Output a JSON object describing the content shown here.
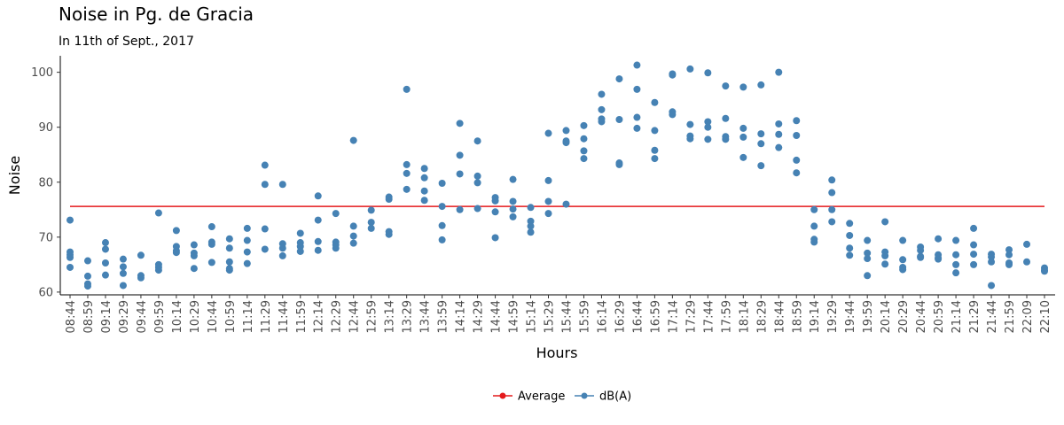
{
  "chart_data": {
    "type": "scatter",
    "title": "Noise in Pg. de Gracia",
    "subtitle": "In 11th of Sept., 2017",
    "xlabel": "Hours",
    "ylabel": "Noise",
    "ylim": [
      59.5,
      103
    ],
    "y_ticks": [
      60,
      70,
      80,
      90,
      100
    ],
    "grid": false,
    "legend_position": "bottom",
    "categories": [
      "08:44",
      "08:59",
      "09:14",
      "09:29",
      "09:44",
      "09:59",
      "10:14",
      "10:29",
      "10:44",
      "10:59",
      "11:14",
      "11:29",
      "11:44",
      "11:59",
      "12:14",
      "12:29",
      "12:44",
      "12:59",
      "13:14",
      "13:29",
      "13:44",
      "13:59",
      "14:14",
      "14:29",
      "14:44",
      "14:59",
      "15:14",
      "15:29",
      "15:44",
      "15:59",
      "16:14",
      "16:29",
      "16:44",
      "16:59",
      "17:14",
      "17:29",
      "17:44",
      "17:59",
      "18:14",
      "18:29",
      "18:44",
      "18:59",
      "19:14",
      "19:29",
      "19:44",
      "19:59",
      "20:14",
      "20:29",
      "20:44",
      "20:59",
      "21:14",
      "21:29",
      "21:44",
      "21:59",
      "22:09",
      "22:10"
    ],
    "series": [
      {
        "name": "Average",
        "type": "line",
        "color": "#e41a1c",
        "value": 75.6
      },
      {
        "name": "dB(A)",
        "type": "scatter",
        "color": "#4682b4",
        "points": [
          {
            "x": "08:44",
            "ys": [
              73.1,
              67.3,
              66.8,
              66.3,
              64.5
            ]
          },
          {
            "x": "08:59",
            "ys": [
              65.7,
              62.9,
              61.5,
              61.1
            ]
          },
          {
            "x": "09:14",
            "ys": [
              69.0,
              67.8,
              65.3,
              63.1
            ]
          },
          {
            "x": "09:29",
            "ys": [
              66.0,
              64.6,
              63.4,
              61.2
            ]
          },
          {
            "x": "09:44",
            "ys": [
              66.7,
              63.0,
              62.6
            ]
          },
          {
            "x": "09:59",
            "ys": [
              74.4,
              65.0,
              64.5,
              64.0
            ]
          },
          {
            "x": "10:14",
            "ys": [
              71.2,
              68.3,
              67.5,
              67.2
            ]
          },
          {
            "x": "10:29",
            "ys": [
              68.6,
              67.1,
              66.6,
              64.3
            ]
          },
          {
            "x": "10:44",
            "ys": [
              71.9,
              69.1,
              68.7,
              65.4
            ]
          },
          {
            "x": "10:59",
            "ys": [
              69.7,
              68.0,
              65.5,
              64.3,
              64.0
            ]
          },
          {
            "x": "11:14",
            "ys": [
              71.6,
              69.4,
              67.3,
              65.2
            ]
          },
          {
            "x": "11:29",
            "ys": [
              83.1,
              79.6,
              71.5,
              67.8
            ]
          },
          {
            "x": "11:44",
            "ys": [
              79.6,
              68.8,
              68.0,
              66.6
            ]
          },
          {
            "x": "11:59",
            "ys": [
              70.7,
              69.0,
              68.3,
              67.4
            ]
          },
          {
            "x": "12:14",
            "ys": [
              77.5,
              73.1,
              69.2,
              67.6
            ]
          },
          {
            "x": "12:29",
            "ys": [
              74.3,
              69.1,
              68.6,
              68.0
            ]
          },
          {
            "x": "12:44",
            "ys": [
              87.6,
              72.0,
              70.2,
              68.9
            ]
          },
          {
            "x": "12:59",
            "ys": [
              74.9,
              72.7,
              71.6
            ]
          },
          {
            "x": "13:14",
            "ys": [
              77.3,
              76.9,
              71.0,
              70.5
            ]
          },
          {
            "x": "13:29",
            "ys": [
              96.9,
              83.2,
              81.6,
              78.7
            ]
          },
          {
            "x": "13:44",
            "ys": [
              82.5,
              80.8,
              78.4,
              76.7
            ]
          },
          {
            "x": "13:59",
            "ys": [
              79.8,
              75.6,
              72.1,
              69.5
            ]
          },
          {
            "x": "14:14",
            "ys": [
              90.7,
              84.9,
              81.5,
              75.0
            ]
          },
          {
            "x": "14:29",
            "ys": [
              87.5,
              81.1,
              79.9,
              75.2
            ]
          },
          {
            "x": "14:44",
            "ys": [
              77.2,
              76.6,
              74.6,
              69.9
            ]
          },
          {
            "x": "14:59",
            "ys": [
              80.5,
              76.5,
              75.1,
              73.7
            ]
          },
          {
            "x": "15:14",
            "ys": [
              75.4,
              72.9,
              72.0,
              70.9
            ]
          },
          {
            "x": "15:29",
            "ys": [
              88.9,
              80.3,
              76.5,
              74.3
            ]
          },
          {
            "x": "15:44",
            "ys": [
              89.4,
              87.5,
              87.2,
              76.0
            ]
          },
          {
            "x": "15:59",
            "ys": [
              90.3,
              87.9,
              85.7,
              84.3
            ]
          },
          {
            "x": "16:14",
            "ys": [
              96.0,
              93.2,
              91.5,
              91.0
            ]
          },
          {
            "x": "16:29",
            "ys": [
              98.8,
              91.4,
              83.5,
              83.2
            ]
          },
          {
            "x": "16:44",
            "ys": [
              101.3,
              96.9,
              91.8,
              89.8
            ]
          },
          {
            "x": "16:59",
            "ys": [
              94.5,
              89.4,
              85.8,
              84.3
            ]
          },
          {
            "x": "17:14",
            "ys": [
              99.7,
              99.5,
              92.8,
              92.3
            ]
          },
          {
            "x": "17:29",
            "ys": [
              100.6,
              90.5,
              88.4,
              87.9
            ]
          },
          {
            "x": "17:44",
            "ys": [
              99.9,
              91.0,
              90.0,
              87.8
            ]
          },
          {
            "x": "17:59",
            "ys": [
              97.5,
              91.6,
              88.3,
              87.8
            ]
          },
          {
            "x": "18:14",
            "ys": [
              97.3,
              89.8,
              88.2,
              84.5
            ]
          },
          {
            "x": "18:29",
            "ys": [
              97.7,
              88.8,
              87.0,
              83.0
            ]
          },
          {
            "x": "18:44",
            "ys": [
              100.0,
              90.6,
              88.7,
              86.3
            ]
          },
          {
            "x": "18:59",
            "ys": [
              91.2,
              88.5,
              84.0,
              81.7
            ]
          },
          {
            "x": "19:14",
            "ys": [
              75.0,
              72.0,
              69.6,
              69.1
            ]
          },
          {
            "x": "19:29",
            "ys": [
              80.4,
              78.1,
              75.0,
              72.8
            ]
          },
          {
            "x": "19:44",
            "ys": [
              72.5,
              70.3,
              68.0,
              66.7
            ]
          },
          {
            "x": "19:59",
            "ys": [
              69.4,
              67.1,
              66.1,
              63.0
            ]
          },
          {
            "x": "20:14",
            "ys": [
              72.8,
              67.3,
              66.6,
              65.1
            ]
          },
          {
            "x": "20:29",
            "ys": [
              69.4,
              65.9,
              64.5,
              64.1
            ]
          },
          {
            "x": "20:44",
            "ys": [
              68.2,
              67.6,
              66.5,
              66.3
            ]
          },
          {
            "x": "20:59",
            "ys": [
              69.7,
              66.8,
              66.2,
              66.0
            ]
          },
          {
            "x": "21:14",
            "ys": [
              69.4,
              66.8,
              65.0,
              63.5
            ]
          },
          {
            "x": "21:29",
            "ys": [
              71.6,
              68.6,
              66.9,
              65.0
            ]
          },
          {
            "x": "21:44",
            "ys": [
              66.9,
              66.4,
              65.5,
              61.2
            ]
          },
          {
            "x": "21:59",
            "ys": [
              67.7,
              66.8,
              65.3,
              65.0
            ]
          },
          {
            "x": "22:09",
            "ys": [
              68.7,
              65.5
            ]
          },
          {
            "x": "22:10",
            "ys": [
              64.4,
              64.0,
              63.8
            ]
          }
        ]
      }
    ]
  }
}
